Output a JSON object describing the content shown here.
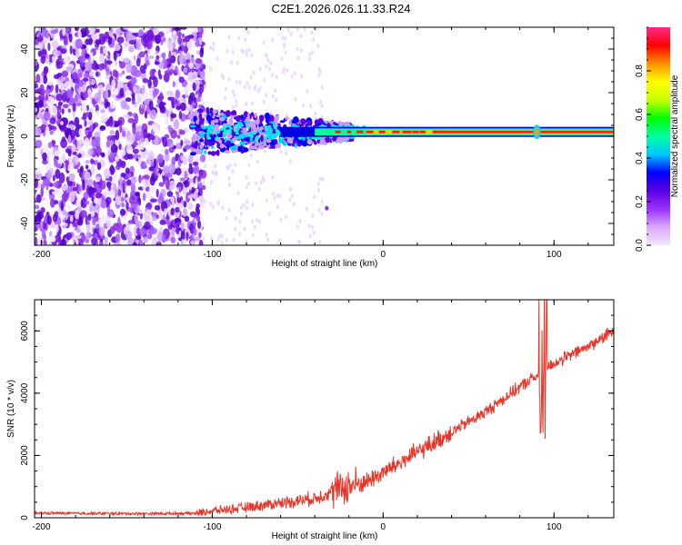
{
  "title": "C2E1.2026.026.11.33.R24",
  "chart_data": [
    {
      "type": "heatmap",
      "xlabel": "Height of straight line (km)",
      "ylabel": "Frequency (Hz)",
      "xlim": [
        -204,
        135
      ],
      "ylim": [
        -50,
        50
      ],
      "x_ticks": [
        -200,
        -100,
        0,
        100
      ],
      "x_tick_labels": [
        "-200",
        "-100",
        "0",
        "100"
      ],
      "y_ticks": [
        -40,
        -20,
        0,
        20,
        40
      ],
      "y_tick_labels": [
        "-40",
        "-20",
        "0",
        "20",
        "40"
      ],
      "signal_line_frequency_hz": 2,
      "noise_region_end_km": -110,
      "colorbar": {
        "label": "Normalized spectral amplitude",
        "range": [
          0,
          1
        ],
        "ticks": [
          0.0,
          0.2,
          0.4,
          0.6,
          0.8
        ],
        "tick_labels": [
          "0.0",
          "0.2",
          "0.4",
          "0.6",
          "0.8"
        ],
        "colors": [
          "#f2e6ff",
          "#d9a8ff",
          "#9b30ff",
          "#5a00e0",
          "#0000ff",
          "#00c8ff",
          "#00ffa0",
          "#00ff00",
          "#c8ff00",
          "#ffff00",
          "#ff9000",
          "#ff0000",
          "#ff2a8a"
        ]
      }
    },
    {
      "type": "line",
      "xlabel": "Height of straight line (km)",
      "ylabel": "SNR (10 * v/v)",
      "xlim": [
        -204,
        135
      ],
      "ylim": [
        0,
        7000
      ],
      "x_ticks": [
        -200,
        -100,
        0,
        100
      ],
      "x_tick_labels": [
        "-200",
        "-100",
        "0",
        "100"
      ],
      "y_ticks": [
        0,
        2000,
        4000,
        6000
      ],
      "y_tick_labels": [
        "0",
        "2000",
        "4000",
        "6000"
      ],
      "color": "#e8352a",
      "series_trend": {
        "x": [
          -204,
          -150,
          -110,
          -100,
          -80,
          -60,
          -40,
          -25,
          -10,
          0,
          20,
          40,
          60,
          80,
          88,
          92,
          95,
          100,
          120,
          135
        ],
        "y": [
          150,
          130,
          140,
          220,
          330,
          480,
          620,
          950,
          1150,
          1450,
          2100,
          2750,
          3400,
          4200,
          4500,
          4600,
          4800,
          4950,
          5500,
          6000
        ]
      }
    }
  ]
}
